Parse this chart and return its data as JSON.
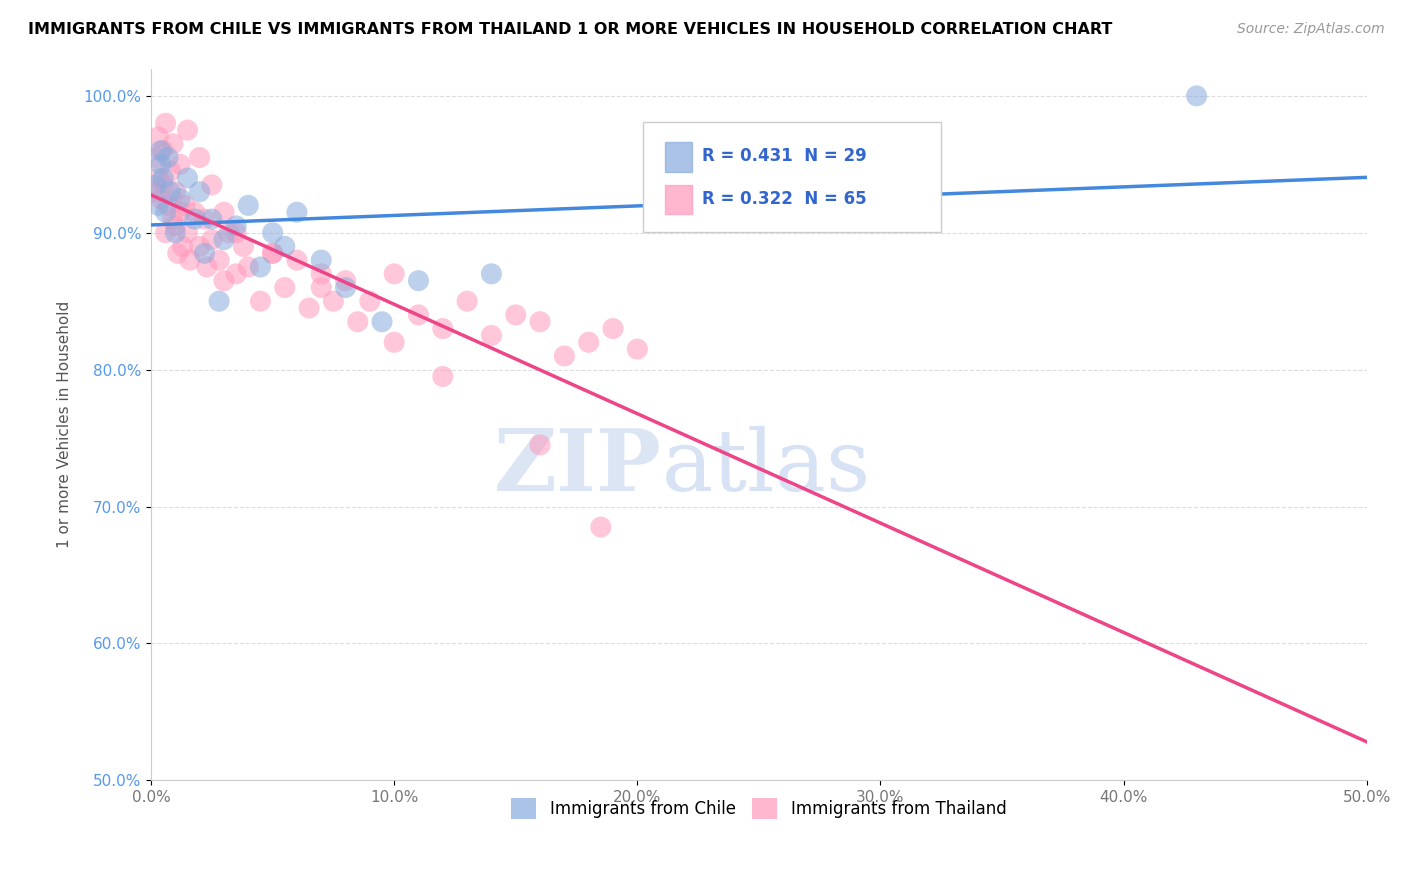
{
  "title": "IMMIGRANTS FROM CHILE VS IMMIGRANTS FROM THAILAND 1 OR MORE VEHICLES IN HOUSEHOLD CORRELATION CHART",
  "source": "Source: ZipAtlas.com",
  "ylabel": "1 or more Vehicles in Household",
  "xlim": [
    0.0,
    50.0
  ],
  "ylim": [
    50.0,
    102.0
  ],
  "xticks": [
    0.0,
    10.0,
    20.0,
    30.0,
    40.0,
    50.0
  ],
  "yticks": [
    50.0,
    60.0,
    70.0,
    80.0,
    90.0,
    100.0
  ],
  "chile_color": "#88AADD",
  "thailand_color": "#FF99BB",
  "chile_line_color": "#4488DD",
  "thailand_line_color": "#EE4488",
  "chile_label": "Immigrants from Chile",
  "thailand_label": "Immigrants from Thailand",
  "chile_R": 0.431,
  "chile_N": 29,
  "thailand_R": 0.322,
  "thailand_N": 65,
  "watermark_zip": "ZIP",
  "watermark_atlas": "atlas",
  "chile_x": [
    0.2,
    0.3,
    0.4,
    0.5,
    0.6,
    0.8,
    1.0,
    1.2,
    1.5,
    1.8,
    2.0,
    2.2,
    2.5,
    3.0,
    3.5,
    4.0,
    4.5,
    5.0,
    5.5,
    6.0,
    7.0,
    8.0,
    9.5,
    11.0,
    14.0,
    43.0,
    0.4,
    0.7,
    2.8
  ],
  "chile_y": [
    93.5,
    92.0,
    95.0,
    94.0,
    91.5,
    93.0,
    90.0,
    92.5,
    94.0,
    91.0,
    93.0,
    88.5,
    91.0,
    89.5,
    90.5,
    92.0,
    87.5,
    90.0,
    89.0,
    91.5,
    88.0,
    86.0,
    83.5,
    86.5,
    87.0,
    100.0,
    96.0,
    95.5,
    85.0
  ],
  "thailand_x": [
    0.1,
    0.2,
    0.3,
    0.4,
    0.5,
    0.5,
    0.6,
    0.7,
    0.8,
    0.9,
    1.0,
    1.0,
    1.1,
    1.2,
    1.3,
    1.4,
    1.5,
    1.6,
    1.8,
    2.0,
    2.2,
    2.3,
    2.5,
    2.8,
    3.0,
    3.2,
    3.5,
    3.8,
    4.0,
    4.5,
    5.0,
    5.5,
    6.0,
    6.5,
    7.0,
    7.5,
    8.0,
    9.0,
    10.0,
    11.0,
    12.0,
    13.0,
    14.0,
    15.0,
    16.0,
    17.0,
    18.0,
    19.0,
    20.0,
    0.3,
    0.6,
    0.9,
    1.2,
    1.5,
    2.0,
    2.5,
    3.0,
    3.5,
    5.0,
    7.0,
    8.5,
    10.0,
    12.0,
    16.0,
    18.5
  ],
  "thailand_y": [
    93.0,
    95.5,
    94.0,
    92.5,
    96.0,
    93.5,
    90.0,
    92.0,
    94.5,
    91.0,
    93.0,
    90.5,
    88.5,
    91.5,
    89.0,
    92.0,
    90.0,
    88.0,
    91.5,
    89.0,
    91.0,
    87.5,
    89.5,
    88.0,
    86.5,
    90.0,
    87.0,
    89.0,
    87.5,
    85.0,
    88.5,
    86.0,
    88.0,
    84.5,
    87.0,
    85.0,
    86.5,
    85.0,
    87.0,
    84.0,
    83.0,
    85.0,
    82.5,
    84.0,
    83.5,
    81.0,
    82.0,
    83.0,
    81.5,
    97.0,
    98.0,
    96.5,
    95.0,
    97.5,
    95.5,
    93.5,
    91.5,
    90.0,
    88.5,
    86.0,
    83.5,
    82.0,
    79.5,
    74.5,
    68.5
  ]
}
